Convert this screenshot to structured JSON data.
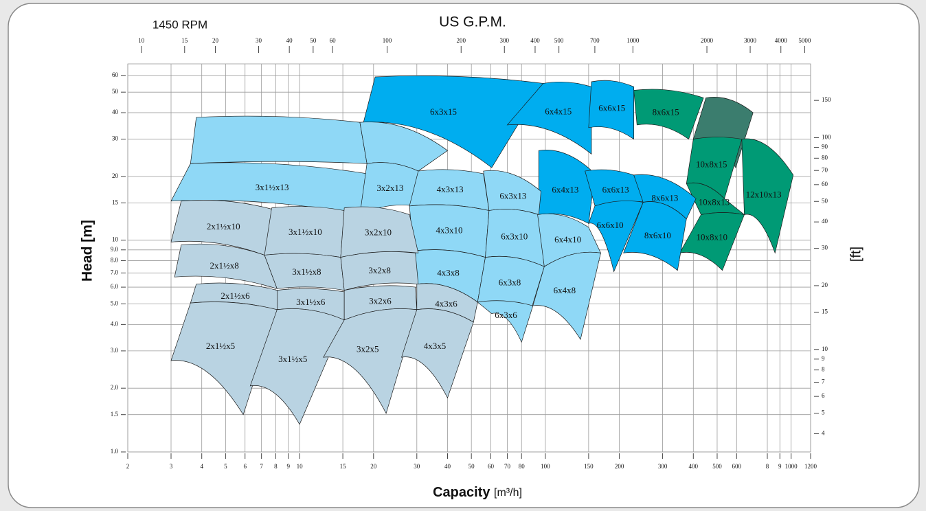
{
  "chart_data": {
    "type": "coverage",
    "title": "US G.P.M.",
    "subtitle": "1450 RPM",
    "y_label": "Head [m]",
    "y2_label": "[ft]",
    "x_label": "Capacity",
    "x_unit": "[m³/h]",
    "log_scale": true,
    "grid": true,
    "xlim": [
      2,
      1200
    ],
    "xticks": [
      2,
      3,
      4,
      5,
      6,
      7,
      8,
      9,
      10,
      15,
      20,
      30,
      40,
      50,
      60,
      70,
      80,
      100,
      150,
      200,
      300,
      400,
      500,
      600,
      {
        "value": 800,
        "label": "8"
      },
      {
        "value": 900,
        "label": "9"
      },
      1000,
      1200
    ],
    "x2lim": [
      8.806,
      5283.6
    ],
    "x2ticks": [
      10,
      15,
      20,
      30,
      40,
      50,
      60,
      100,
      200,
      300,
      400,
      500,
      700,
      1000,
      2000,
      3000,
      4000,
      5000
    ],
    "ylim": [
      1,
      68
    ],
    "yticks": [
      {
        "value": 1,
        "label": "1.0"
      },
      {
        "value": 1.5,
        "label": "1.5"
      },
      {
        "value": 2,
        "label": "2.0"
      },
      {
        "value": 3,
        "label": "3.0"
      },
      {
        "value": 4,
        "label": "4.0"
      },
      {
        "value": 5,
        "label": "5.0"
      },
      {
        "value": 6,
        "label": "6.0"
      },
      {
        "value": 7,
        "label": "7.0"
      },
      {
        "value": 8,
        "label": "8.0"
      },
      {
        "value": 9,
        "label": "9.0"
      },
      10,
      15,
      20,
      30,
      40,
      50,
      60
    ],
    "y2lim": [
      3.28,
      223.1
    ],
    "y2ticks": [
      4,
      5,
      6,
      7,
      8,
      9,
      10,
      15,
      20,
      30,
      40,
      50,
      60,
      70,
      80,
      90,
      100,
      150
    ],
    "regions": [
      {
        "label": "8x6x15",
        "color": "#009a75",
        "capacity": [
          229,
          440,
          383,
          236
        ],
        "head": [
          51,
          47,
          30,
          35
        ]
      },
      {
        "label": null,
        "color": "#3b7d6e",
        "capacity": [
          450,
          700,
          595,
          400
        ],
        "head": [
          47,
          40,
          22,
          30
        ]
      },
      {
        "label": "10x8x15",
        "color": "#009a75",
        "capacity": [
          400,
          630,
          535,
          375
        ],
        "head": [
          30,
          30,
          15.7,
          18.5
        ]
      },
      {
        "label": "12x10x13",
        "color": "#009a75",
        "capacity": [
          630,
          1020,
          860,
          645
        ],
        "head": [
          30,
          20.3,
          8.7,
          13.2
        ]
      },
      {
        "label": "10x8x13",
        "color": "#009a75",
        "capacity": [
          375,
          535,
          645,
          430
        ],
        "head": [
          18.5,
          15.7,
          13.2,
          13.2
        ]
      },
      {
        "label": "10x8x10",
        "color": "#009a75",
        "capacity": [
          430,
          645,
          525,
          352
        ],
        "head": [
          13.2,
          13.2,
          7.2,
          8.7
        ]
      },
      {
        "label": "6x3x15",
        "color": "#00adef",
        "capacity": [
          20.3,
          98,
          60.5,
          18.2
        ],
        "head": [
          59,
          55,
          22,
          36
        ]
      },
      {
        "label": "6x4x15",
        "color": "#00adef",
        "capacity": [
          98,
          154,
          154,
          70
        ],
        "head": [
          55,
          53,
          25.5,
          35
        ]
      },
      {
        "label": "6x6x15",
        "color": "#00adef",
        "capacity": [
          154,
          229,
          229,
          150
        ],
        "head": [
          56,
          53,
          30,
          34
        ]
      },
      {
        "label": "6x4x13",
        "color": "#00adef",
        "capacity": [
          94,
          159,
          150,
          94
        ],
        "head": [
          26.5,
          20.6,
          12,
          13.2
        ]
      },
      {
        "label": "6x6x13",
        "color": "#00adef",
        "capacity": [
          145,
          229,
          257,
          163
        ],
        "head": [
          21.2,
          20.3,
          15.1,
          13.2
        ]
      },
      {
        "label": "6x6x10",
        "color": "#00adef",
        "capacity": [
          159,
          250,
          190,
          150
        ],
        "head": [
          14.5,
          15.1,
          7.1,
          12
        ]
      },
      {
        "label": "8x6x13",
        "color": "#00adef",
        "capacity": [
          229,
          410,
          375,
          250
        ],
        "head": [
          20.3,
          15.7,
          12.6,
          15.1
        ]
      },
      {
        "label": "8x6x10",
        "color": "#00adef",
        "capacity": [
          250,
          375,
          345,
          208
        ],
        "head": [
          15.1,
          12.6,
          7.2,
          8.7
        ]
      },
      {
        "label": null,
        "color": "#8fd8f6",
        "capacity": [
          3.8,
          17.6,
          18.8,
          3.6
        ],
        "head": [
          38,
          36,
          23,
          23
        ]
      },
      {
        "label": null,
        "color": "#8fd8f6",
        "capacity": [
          17.6,
          40,
          30.4,
          18.8
        ],
        "head": [
          36,
          26.5,
          21.2,
          23
        ]
      },
      {
        "label": "3x1½x13",
        "color": "#8fd8f6",
        "capacity": [
          3.6,
          18.8,
          17.6,
          3
        ],
        "head": [
          23,
          20.6,
          13.2,
          15.3
        ]
      },
      {
        "label": "3x2x13",
        "color": "#8fd8f6",
        "capacity": [
          18.8,
          30.4,
          29.6,
          17.6
        ],
        "head": [
          23,
          21.2,
          14.5,
          13.2
        ]
      },
      {
        "label": "4x3x13",
        "color": "#8fd8f6",
        "capacity": [
          30.4,
          56,
          59,
          28
        ],
        "head": [
          21.2,
          20.6,
          13.8,
          14.5
        ]
      },
      {
        "label": "4x3x10",
        "color": "#8fd8f6",
        "capacity": [
          28,
          59,
          57,
          29
        ],
        "head": [
          14.5,
          13.8,
          8.3,
          8.9
        ]
      },
      {
        "label": "4x3x8",
        "color": "#8fd8f6",
        "capacity": [
          29,
          57,
          53,
          30
        ],
        "head": [
          8.9,
          8.3,
          5.1,
          6.2
        ]
      },
      {
        "label": "6x3x13",
        "color": "#8fd8f6",
        "capacity": [
          56,
          96,
          94,
          59
        ],
        "head": [
          21.2,
          17,
          13.2,
          13.8
        ]
      },
      {
        "label": "6x3x10",
        "color": "#8fd8f6",
        "capacity": [
          59,
          94,
          99,
          57
        ],
        "head": [
          13.8,
          13.2,
          7.5,
          8.3
        ]
      },
      {
        "label": "6x3x8",
        "color": "#8fd8f6",
        "capacity": [
          57,
          99,
          88,
          53
        ],
        "head": [
          8.3,
          7.5,
          4.8,
          5.1
        ]
      },
      {
        "label": "6x3x6",
        "color": "#8fd8f6",
        "capacity": [
          53,
          89,
          80,
          60.5
        ],
        "head": [
          5.1,
          4.9,
          3.3,
          4.5
        ]
      },
      {
        "label": "6x4x10",
        "color": "#8fd8f6",
        "capacity": [
          93,
          150,
          168,
          99
        ],
        "head": [
          13.2,
          11.5,
          8.7,
          7.5
        ]
      },
      {
        "label": "6x4x8",
        "color": "#8fd8f6",
        "capacity": [
          99,
          168,
          139,
          89
        ],
        "head": [
          7.5,
          8.7,
          3.4,
          4.9
        ]
      },
      {
        "label": "2x1½x10",
        "color": "#b9d3e2",
        "capacity": [
          3.3,
          8.1,
          7.2,
          3
        ],
        "head": [
          15.3,
          13.8,
          8.5,
          9.8
        ]
      },
      {
        "label": "2x1½x8",
        "color": "#b9d3e2",
        "capacity": [
          3.3,
          7.2,
          8.1,
          3.1
        ],
        "head": [
          9.5,
          8.5,
          5.9,
          6.7
        ]
      },
      {
        "label": "2x1½x6",
        "color": "#b9d3e2",
        "capacity": [
          3.8,
          8.1,
          8.1,
          3.6
        ],
        "head": [
          6.2,
          5.8,
          4.7,
          5.05
        ]
      },
      {
        "label": "2x1½x5",
        "color": "#b9d3e2",
        "capacity": [
          3.6,
          8.1,
          5.9,
          3
        ],
        "head": [
          5.05,
          4.7,
          1.5,
          2.7
        ]
      },
      {
        "label": "3x1½x10",
        "color": "#b9d3e2",
        "capacity": [
          7.7,
          15.2,
          14.7,
          7.2
        ],
        "head": [
          14.2,
          13.8,
          8.3,
          8.5
        ]
      },
      {
        "label": "3x1½x8",
        "color": "#b9d3e2",
        "capacity": [
          7.2,
          14.7,
          15.2,
          8.1
        ],
        "head": [
          8.5,
          8.3,
          5.8,
          5.9
        ]
      },
      {
        "label": "3x1½x6",
        "color": "#b9d3e2",
        "capacity": [
          8.1,
          15.2,
          15.2,
          8.1
        ],
        "head": [
          5.8,
          5.7,
          4.2,
          4.7
        ]
      },
      {
        "label": "3x1½x5",
        "color": "#b9d3e2",
        "capacity": [
          8.1,
          15.2,
          10,
          6.3
        ],
        "head": [
          4.7,
          4.2,
          1.35,
          2.05
        ]
      },
      {
        "label": "3x2x10",
        "color": "#b9d3e2",
        "capacity": [
          15.2,
          28,
          30.4,
          14.7
        ],
        "head": [
          14.2,
          13.2,
          8.7,
          8.3
        ]
      },
      {
        "label": "3x2x8",
        "color": "#b9d3e2",
        "capacity": [
          14.7,
          29.6,
          30.4,
          15.2
        ],
        "head": [
          8.3,
          8.7,
          6.2,
          5.8
        ]
      },
      {
        "label": "3x2x6",
        "color": "#b9d3e2",
        "capacity": [
          15.2,
          29.6,
          30,
          15.2
        ],
        "head": [
          5.8,
          6,
          4.7,
          4.2
        ]
      },
      {
        "label": "3x2x5",
        "color": "#b9d3e2",
        "capacity": [
          15.2,
          30,
          22.5,
          12.5
        ],
        "head": [
          4.2,
          4.7,
          1.52,
          2.8
        ]
      },
      {
        "label": "4x3x6",
        "color": "#b9d3e2",
        "capacity": [
          30,
          53,
          51,
          30
        ],
        "head": [
          6.2,
          5.1,
          4.1,
          4.7
        ]
      },
      {
        "label": "4x3x5",
        "color": "#b9d3e2",
        "capacity": [
          30,
          51,
          40,
          26
        ],
        "head": [
          4.7,
          4.1,
          1.8,
          2.8
        ]
      }
    ]
  }
}
